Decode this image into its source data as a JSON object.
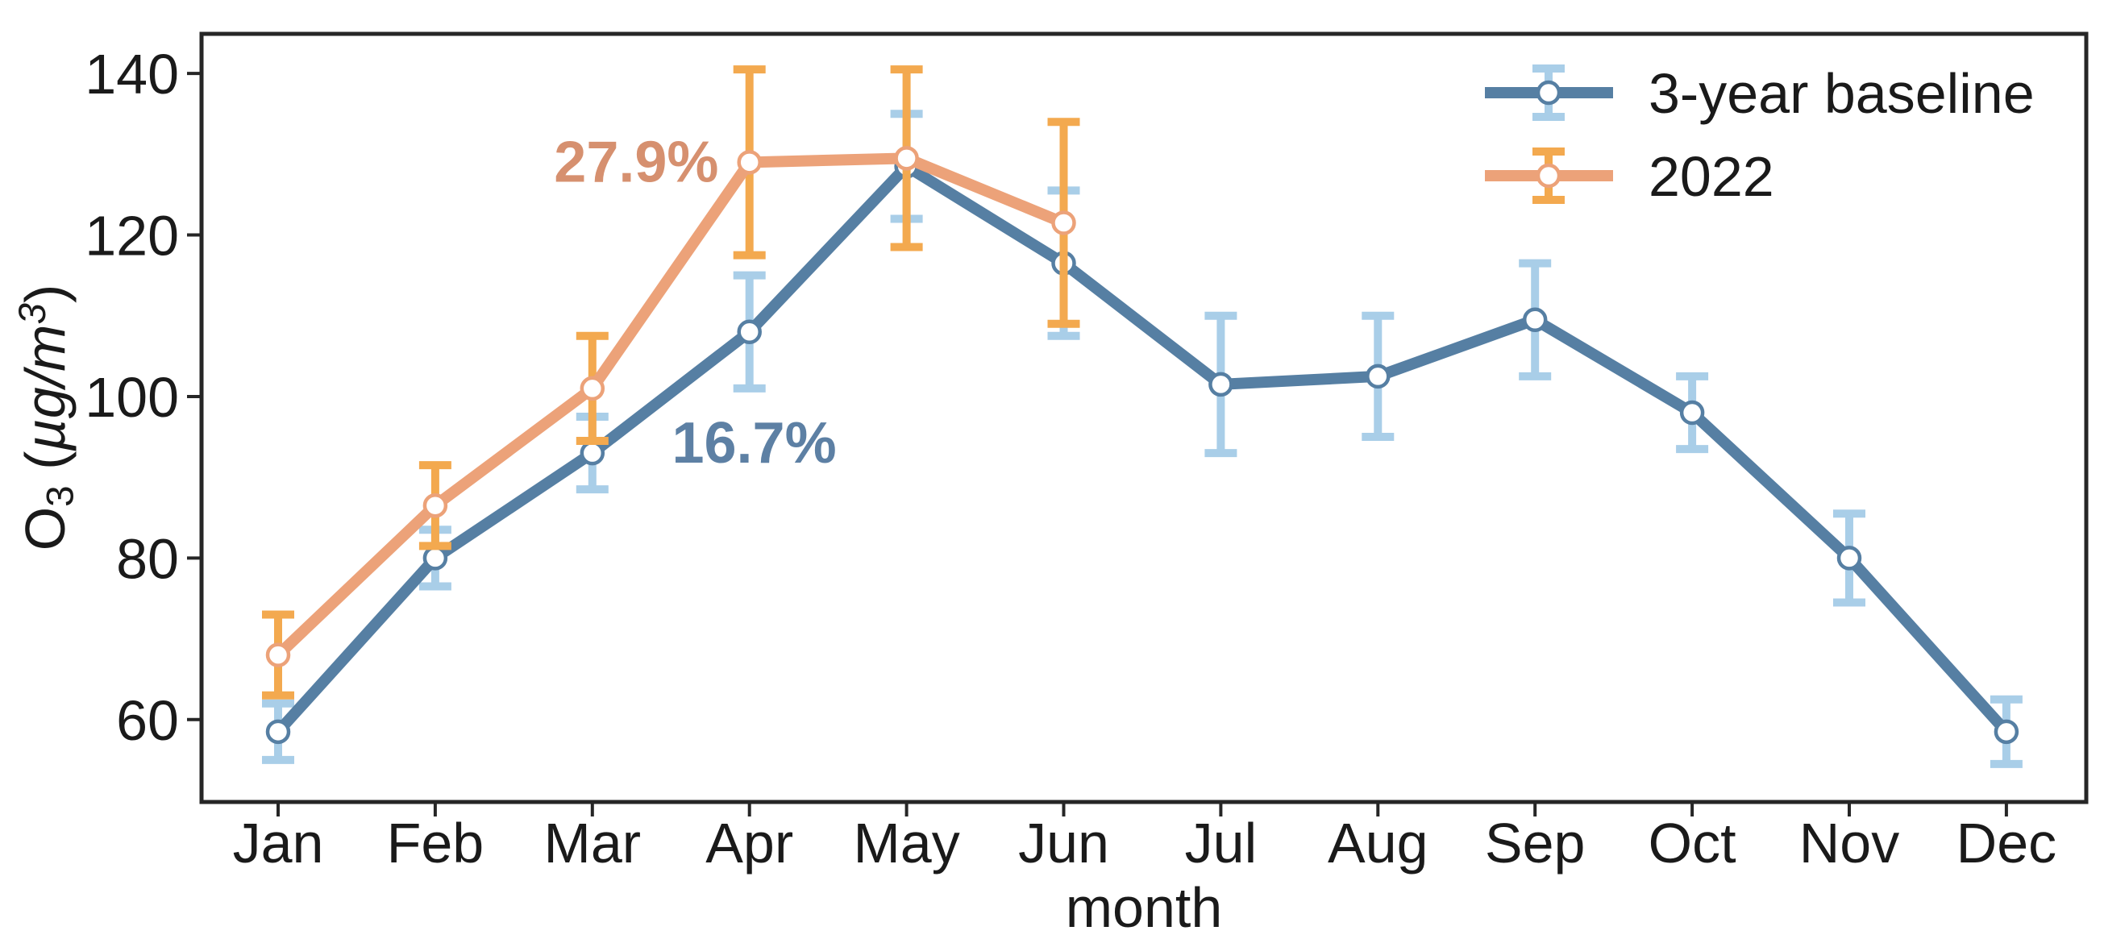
{
  "page": {
    "background": "#ffffff",
    "text_color": "#1a1a1a"
  },
  "chart_data": {
    "type": "line",
    "title": "",
    "xlabel": "month",
    "ylabel": "O3 (µg/m3)",
    "ylabel_parts": {
      "element": "O",
      "element_sub": "3",
      "unit_open": " (",
      "unit_mu": "µg/m",
      "unit_sup": "3",
      "unit_close": ")"
    },
    "categories": [
      "Jan",
      "Feb",
      "Mar",
      "Apr",
      "May",
      "Jun",
      "Jul",
      "Aug",
      "Sep",
      "Oct",
      "Nov",
      "Dec"
    ],
    "yticks": [
      60,
      80,
      100,
      120,
      140
    ],
    "ylim": [
      49.8,
      144.9
    ],
    "grid": false,
    "legend_position": "upper right",
    "series": [
      {
        "name": "3-year baseline",
        "color": "#567fa3",
        "error_color": "#a9cee8",
        "values": [
          58.5,
          80,
          93,
          108,
          128.5,
          116.5,
          101.5,
          102.5,
          109.5,
          98,
          80,
          58.5
        ],
        "errors": [
          3.5,
          3.5,
          4.5,
          7,
          6.5,
          9,
          8.5,
          7.5,
          7,
          4.5,
          5.5,
          4
        ]
      },
      {
        "name": "2022",
        "color": "#eca279",
        "error_color": "#f3a94f",
        "values": [
          68,
          86.5,
          101,
          129,
          129.5,
          121.5
        ],
        "errors": [
          5,
          5,
          6.5,
          11.5,
          11,
          12.5
        ]
      }
    ],
    "annotations": [
      {
        "text": "27.9%",
        "color": "#d6906f",
        "x_month": 2.28,
        "y_value": 129.2
      },
      {
        "text": "16.7%",
        "color": "#5d80a4",
        "x_month": 3.03,
        "y_value": 94.4
      }
    ]
  }
}
